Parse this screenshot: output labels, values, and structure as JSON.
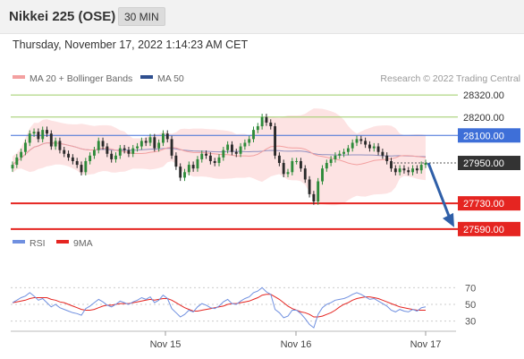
{
  "header": {
    "instrument": "Nikkei 225 (OSE)",
    "interval": "30 MIN"
  },
  "timestamp": "Thursday, November 17, 2022 1:14:23 AM CET",
  "legend": {
    "ma20": "MA 20 + Bollinger Bands",
    "ma50": "MA 50",
    "research": "Research © 2022 Trading Central",
    "rsi": "RSI",
    "rsi_ma": "9MA"
  },
  "colors": {
    "ma20": "#f3a0a0",
    "bollinger_fill": "#fde3e3",
    "ma50": "#9090c0",
    "candle_up": "#2e8b3a",
    "candle_down": "#2a2a2a",
    "resistance_green": "#9ccc65",
    "resistance_blue": "#3e6fd8",
    "support_red": "#e52521",
    "current_price": "#333333",
    "arrow": "#2f5fa8",
    "rsi": "#7090e0",
    "rsi_ma": "#e52521"
  },
  "chart_data": [
    {
      "type": "candlestick",
      "title": "Nikkei 225 (OSE)",
      "x_tick_labels": [
        "Nov 15",
        "Nov 16",
        "Nov 17"
      ],
      "ylim": [
        27560,
        28350
      ],
      "levels": [
        {
          "value": 28320.0,
          "label": "28320.00",
          "kind": "resistance",
          "color": "green"
        },
        {
          "value": 28200.0,
          "label": "28200.00",
          "kind": "resistance",
          "color": "green"
        },
        {
          "value": 28100.0,
          "label": "28100.00",
          "kind": "pivot",
          "color": "blue"
        },
        {
          "value": 27950.0,
          "label": "27950.00",
          "kind": "last",
          "color": "dark"
        },
        {
          "value": 27730.0,
          "label": "27730.00",
          "kind": "support",
          "color": "red"
        },
        {
          "value": 27590.0,
          "label": "27590.00",
          "kind": "support",
          "color": "red"
        }
      ],
      "current_price": 27950.0,
      "projection": {
        "from": 27950,
        "to": 27590,
        "direction": "down"
      },
      "series": [
        {
          "name": "MA 20 + Bollinger Bands"
        },
        {
          "name": "MA 50"
        }
      ],
      "candles_close": [
        27940,
        27980,
        28010,
        28060,
        28110,
        28120,
        28080,
        28130,
        28110,
        28040,
        28070,
        28020,
        28000,
        27980,
        27960,
        27940,
        27900,
        27960,
        27990,
        28020,
        28070,
        28040,
        28000,
        27970,
        27990,
        28030,
        28020,
        28000,
        28030,
        28040,
        28070,
        28060,
        28090,
        28030,
        28060,
        28110,
        28080,
        27990,
        27930,
        27870,
        27900,
        27940,
        27920,
        27970,
        28000,
        27990,
        27960,
        27950,
        27980,
        28020,
        28050,
        28010,
        28000,
        28040,
        28060,
        28080,
        28130,
        28150,
        28200,
        28170,
        28150,
        27990,
        27950,
        27890,
        27900,
        27960,
        27960,
        27920,
        27860,
        27780,
        27740,
        27850,
        27920,
        27950,
        27970,
        27990,
        28000,
        28010,
        28030,
        28060,
        28080,
        28070,
        28050,
        28030,
        28040,
        28010,
        27990,
        27960,
        27920,
        27900,
        27920,
        27910,
        27900,
        27920,
        27910,
        27940,
        27950
      ],
      "candles_open": [
        27920,
        27940,
        27980,
        28010,
        28060,
        28110,
        28120,
        28080,
        28130,
        28110,
        28040,
        28070,
        28020,
        28000,
        27980,
        27960,
        27940,
        27900,
        27960,
        27990,
        28020,
        28070,
        28040,
        28000,
        27970,
        27990,
        28030,
        28020,
        28000,
        28030,
        28040,
        28070,
        28060,
        28090,
        28030,
        28060,
        28110,
        28080,
        27990,
        27930,
        27870,
        27900,
        27940,
        27920,
        27970,
        28000,
        27990,
        27960,
        27950,
        27980,
        28020,
        28050,
        28010,
        28000,
        28040,
        28060,
        28080,
        28130,
        28150,
        28200,
        28170,
        28150,
        27990,
        27950,
        27890,
        27900,
        27960,
        27960,
        27920,
        27860,
        27780,
        27740,
        27850,
        27920,
        27950,
        27970,
        27990,
        28000,
        28010,
        28030,
        28060,
        28080,
        28070,
        28050,
        28030,
        28040,
        28010,
        27990,
        27960,
        27920,
        27900,
        27920,
        27910,
        27900,
        27920,
        27910,
        27940
      ]
    },
    {
      "type": "line",
      "title": "",
      "ylim": [
        20,
        80
      ],
      "y_tick_labels": [
        "70",
        "50",
        "30"
      ],
      "y_ticks": [
        70,
        50,
        30
      ],
      "series": [
        {
          "name": "RSI",
          "values": [
            52,
            55,
            58,
            60,
            64,
            60,
            55,
            57,
            52,
            47,
            50,
            46,
            44,
            42,
            40,
            39,
            37,
            45,
            48,
            52,
            56,
            53,
            49,
            47,
            50,
            54,
            52,
            50,
            53,
            55,
            58,
            56,
            59,
            52,
            55,
            61,
            57,
            45,
            40,
            35,
            38,
            43,
            41,
            47,
            51,
            49,
            46,
            45,
            48,
            53,
            56,
            51,
            50,
            54,
            57,
            59,
            64,
            66,
            70,
            65,
            62,
            44,
            40,
            34,
            36,
            43,
            43,
            39,
            33,
            26,
            22,
            38,
            46,
            50,
            52,
            55,
            56,
            57,
            59,
            62,
            64,
            62,
            59,
            56,
            57,
            54,
            51,
            48,
            43,
            41,
            44,
            42,
            41,
            44,
            42,
            46,
            47
          ]
        },
        {
          "name": "9MA",
          "values": [
            52,
            53,
            54,
            55,
            57,
            58,
            58,
            58,
            58,
            56,
            55,
            53,
            52,
            50,
            48,
            46,
            44,
            43,
            43,
            44,
            46,
            48,
            49,
            49,
            50,
            51,
            51,
            51,
            52,
            53,
            54,
            55,
            56,
            55,
            56,
            57,
            57,
            55,
            52,
            49,
            46,
            44,
            42,
            42,
            43,
            44,
            45,
            46,
            47,
            48,
            50,
            51,
            51,
            52,
            53,
            54,
            56,
            58,
            61,
            62,
            62,
            59,
            56,
            52,
            48,
            45,
            43,
            41,
            40,
            38,
            35,
            35,
            36,
            38,
            40,
            43,
            47,
            50,
            52,
            55,
            57,
            58,
            59,
            59,
            58,
            57,
            55,
            53,
            51,
            49,
            47,
            46,
            45,
            44,
            43,
            43,
            43
          ]
        }
      ]
    }
  ]
}
